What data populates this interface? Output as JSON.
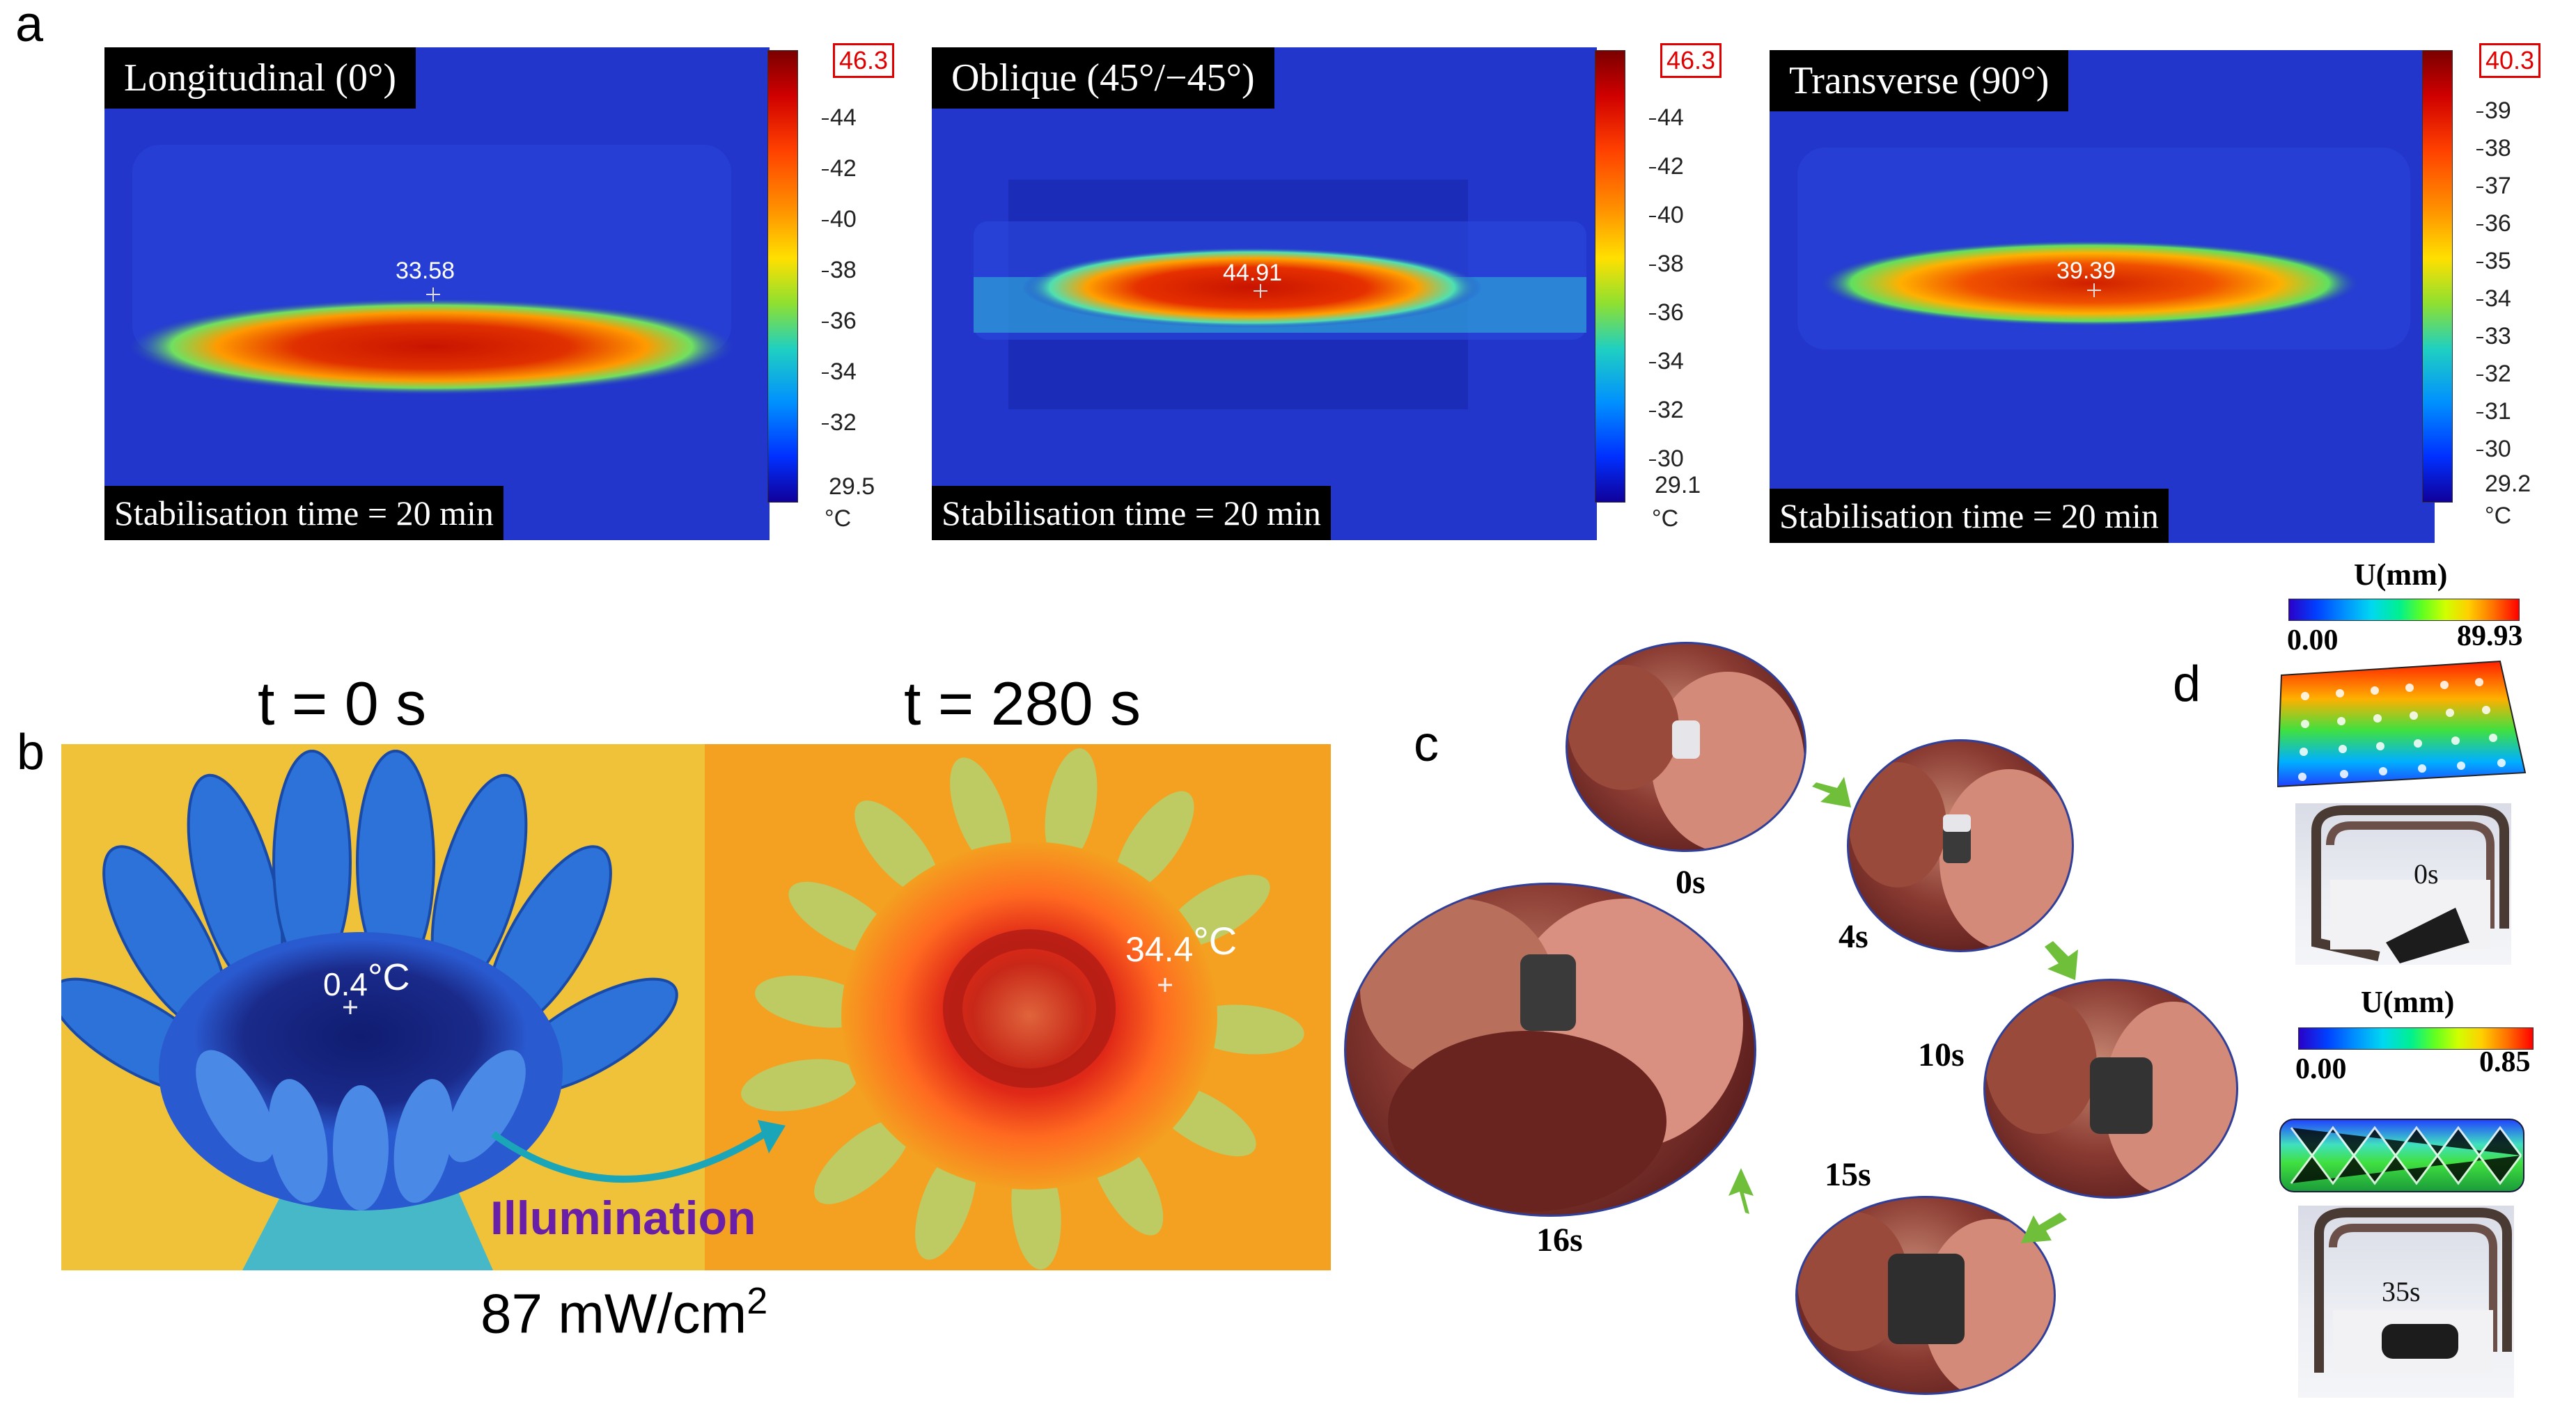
{
  "panel_letters": {
    "a": "a",
    "b": "b",
    "c": "c",
    "d": "d"
  },
  "panel_a": {
    "images": [
      {
        "label": "Longitudinal (0°)",
        "footer": "Stabilisation time = 20 min",
        "readout": "33.58",
        "scale": {
          "max": "46.3",
          "ticks": [
            "44",
            "42",
            "40",
            "38",
            "36",
            "34",
            "32"
          ],
          "min": "29.5",
          "unit": "°C"
        }
      },
      {
        "label": "Oblique (45°/−45°)",
        "footer": "Stabilisation time = 20 min",
        "readout": "44.91",
        "scale": {
          "max": "46.3",
          "ticks": [
            "44",
            "42",
            "40",
            "38",
            "36",
            "34",
            "32",
            "30"
          ],
          "min": "29.1",
          "unit": "°C"
        }
      },
      {
        "label": "Transverse (90°)",
        "footer": "Stabilisation time = 20 min",
        "readout": "39.39",
        "scale": {
          "max": "40.3",
          "ticks": [
            "39",
            "38",
            "37",
            "36",
            "35",
            "34",
            "33",
            "32",
            "31",
            "30"
          ],
          "min": "29.2",
          "unit": "°C"
        }
      }
    ]
  },
  "panel_b": {
    "time_left": "t = 0 s",
    "time_right": "t = 280 s",
    "temp_left_value": "0.4",
    "temp_right_value": "34.4",
    "temp_unit": "°C",
    "arrow_label": "Illumination",
    "intensity_value": "87 mW/cm",
    "intensity_exp": "2"
  },
  "panel_c": {
    "frames": [
      "0s",
      "4s",
      "10s",
      "15s",
      "16s"
    ]
  },
  "panel_d": {
    "top": {
      "legend_title": "U(mm)",
      "min": "0.00",
      "max": "89.93",
      "photo_label": "0s"
    },
    "bottom": {
      "legend_title": "U(mm)",
      "min": "0.00",
      "max": "0.85",
      "photo_label": "35s"
    }
  },
  "colors": {
    "accent_red": "#e00000",
    "label_purple": "#6a1fa8",
    "arrow_teal": "#1aa6b8",
    "arrow_green": "#6fbf3a"
  }
}
